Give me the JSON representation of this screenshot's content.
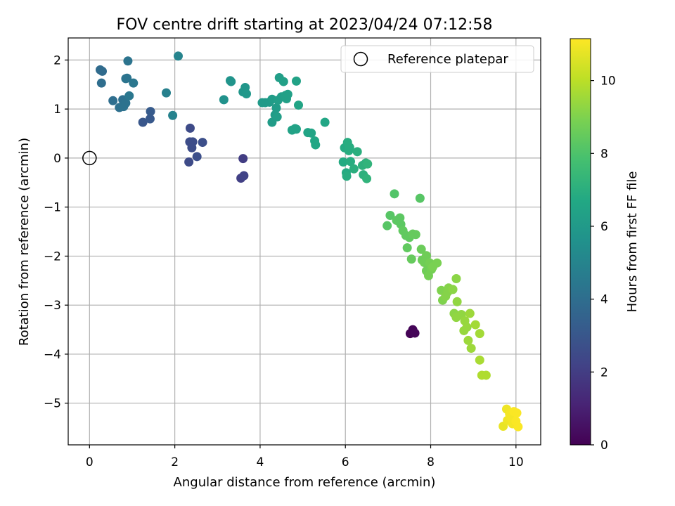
{
  "chart_data": {
    "type": "scatter",
    "title": "FOV centre drift starting at 2023/04/24 07:12:58",
    "xlabel": "Angular distance from reference (arcmin)",
    "ylabel": "Rotation from reference (arcmin)",
    "xlim": [
      -0.5,
      10.58
    ],
    "ylim": [
      -5.85,
      2.45
    ],
    "xticks": [
      0,
      2,
      4,
      6,
      8,
      10
    ],
    "yticks": [
      -5,
      -4,
      -3,
      -2,
      -1,
      0,
      1,
      2
    ],
    "xtick_labels": [
      "0",
      "2",
      "4",
      "6",
      "8",
      "10"
    ],
    "ytick_labels": [
      "−5",
      "−4",
      "−3",
      "−2",
      "−1",
      "0",
      "1",
      "2"
    ],
    "grid": true,
    "legend": {
      "placement": "top-right",
      "entries": [
        "Reference platepar"
      ]
    },
    "reference_point": {
      "x": 0,
      "y": 0
    },
    "colorbar": {
      "label": "Hours from first FF file",
      "range": [
        0,
        11.15
      ],
      "ticks": [
        0,
        2,
        4,
        6,
        8,
        10
      ],
      "tick_labels": [
        "0",
        "2",
        "4",
        "6",
        "8",
        "10"
      ],
      "colormap": "viridis"
    },
    "points": [
      {
        "x": 7.52,
        "y": -3.58,
        "h": 0.05
      },
      {
        "x": 7.58,
        "y": -3.5,
        "h": 0.1
      },
      {
        "x": 7.63,
        "y": -3.57,
        "h": 0.15
      },
      {
        "x": 3.6,
        "y": -0.01,
        "h": 2.0
      },
      {
        "x": 3.55,
        "y": -0.41,
        "h": 2.1
      },
      {
        "x": 3.62,
        "y": -0.36,
        "h": 2.2
      },
      {
        "x": 2.33,
        "y": -0.08,
        "h": 2.5
      },
      {
        "x": 2.36,
        "y": 0.61,
        "h": 2.5
      },
      {
        "x": 2.35,
        "y": 0.33,
        "h": 2.6
      },
      {
        "x": 2.42,
        "y": 0.33,
        "h": 2.6
      },
      {
        "x": 2.4,
        "y": 0.21,
        "h": 2.6
      },
      {
        "x": 2.52,
        "y": 0.03,
        "h": 2.7
      },
      {
        "x": 2.65,
        "y": 0.32,
        "h": 2.7
      },
      {
        "x": 1.25,
        "y": 0.73,
        "h": 3.0
      },
      {
        "x": 1.42,
        "y": 0.8,
        "h": 3.1
      },
      {
        "x": 1.43,
        "y": 0.95,
        "h": 3.2
      },
      {
        "x": 0.25,
        "y": 1.8,
        "h": 3.9
      },
      {
        "x": 0.3,
        "y": 1.77,
        "h": 3.9
      },
      {
        "x": 0.28,
        "y": 1.53,
        "h": 4.0
      },
      {
        "x": 0.55,
        "y": 1.17,
        "h": 4.0
      },
      {
        "x": 0.7,
        "y": 1.03,
        "h": 4.1
      },
      {
        "x": 0.78,
        "y": 1.19,
        "h": 4.1
      },
      {
        "x": 0.8,
        "y": 1.05,
        "h": 4.2
      },
      {
        "x": 0.85,
        "y": 1.12,
        "h": 4.2
      },
      {
        "x": 0.85,
        "y": 1.62,
        "h": 4.3
      },
      {
        "x": 0.88,
        "y": 1.63,
        "h": 4.3
      },
      {
        "x": 0.9,
        "y": 1.98,
        "h": 4.3
      },
      {
        "x": 0.93,
        "y": 1.27,
        "h": 4.4
      },
      {
        "x": 1.03,
        "y": 1.53,
        "h": 4.4
      },
      {
        "x": 1.8,
        "y": 1.33,
        "h": 4.8
      },
      {
        "x": 1.95,
        "y": 0.87,
        "h": 4.9
      },
      {
        "x": 2.08,
        "y": 2.08,
        "h": 5.0
      },
      {
        "x": 3.15,
        "y": 1.19,
        "h": 5.6
      },
      {
        "x": 3.3,
        "y": 1.58,
        "h": 5.7
      },
      {
        "x": 3.32,
        "y": 1.56,
        "h": 5.7
      },
      {
        "x": 3.6,
        "y": 1.35,
        "h": 5.8
      },
      {
        "x": 3.65,
        "y": 1.44,
        "h": 5.8
      },
      {
        "x": 3.68,
        "y": 1.31,
        "h": 5.9
      },
      {
        "x": 4.05,
        "y": 1.13,
        "h": 6.0
      },
      {
        "x": 4.12,
        "y": 1.13,
        "h": 6.0
      },
      {
        "x": 4.22,
        "y": 1.14,
        "h": 6.0
      },
      {
        "x": 4.28,
        "y": 1.2,
        "h": 6.1
      },
      {
        "x": 4.28,
        "y": 0.73,
        "h": 6.1
      },
      {
        "x": 4.35,
        "y": 0.88,
        "h": 6.1
      },
      {
        "x": 4.38,
        "y": 1.02,
        "h": 6.1
      },
      {
        "x": 4.4,
        "y": 0.84,
        "h": 6.2
      },
      {
        "x": 4.42,
        "y": 1.18,
        "h": 6.2
      },
      {
        "x": 4.45,
        "y": 1.64,
        "h": 6.2
      },
      {
        "x": 4.5,
        "y": 1.25,
        "h": 6.2
      },
      {
        "x": 4.55,
        "y": 1.56,
        "h": 6.3
      },
      {
        "x": 4.6,
        "y": 1.28,
        "h": 6.3
      },
      {
        "x": 4.62,
        "y": 1.21,
        "h": 6.3
      },
      {
        "x": 4.65,
        "y": 1.3,
        "h": 6.3
      },
      {
        "x": 4.75,
        "y": 0.57,
        "h": 6.4
      },
      {
        "x": 4.82,
        "y": 0.6,
        "h": 6.4
      },
      {
        "x": 4.85,
        "y": 0.59,
        "h": 6.4
      },
      {
        "x": 4.85,
        "y": 1.57,
        "h": 6.4
      },
      {
        "x": 4.9,
        "y": 1.08,
        "h": 6.5
      },
      {
        "x": 5.12,
        "y": 0.52,
        "h": 6.5
      },
      {
        "x": 5.2,
        "y": 0.51,
        "h": 6.5
      },
      {
        "x": 5.28,
        "y": 0.35,
        "h": 6.6
      },
      {
        "x": 5.3,
        "y": 0.27,
        "h": 6.6
      },
      {
        "x": 5.52,
        "y": 0.73,
        "h": 6.6
      },
      {
        "x": 5.95,
        "y": -0.08,
        "h": 6.8
      },
      {
        "x": 5.98,
        "y": 0.21,
        "h": 6.8
      },
      {
        "x": 6.02,
        "y": -0.3,
        "h": 6.8
      },
      {
        "x": 6.03,
        "y": -0.37,
        "h": 6.9
      },
      {
        "x": 6.05,
        "y": 0.32,
        "h": 6.9
      },
      {
        "x": 6.08,
        "y": 0.15,
        "h": 6.9
      },
      {
        "x": 6.1,
        "y": 0.22,
        "h": 6.9
      },
      {
        "x": 6.12,
        "y": -0.07,
        "h": 6.9
      },
      {
        "x": 6.2,
        "y": -0.22,
        "h": 7.0
      },
      {
        "x": 6.28,
        "y": 0.13,
        "h": 7.0
      },
      {
        "x": 6.4,
        "y": -0.15,
        "h": 7.1
      },
      {
        "x": 6.42,
        "y": -0.34,
        "h": 7.1
      },
      {
        "x": 6.48,
        "y": -0.1,
        "h": 7.1
      },
      {
        "x": 6.5,
        "y": -0.42,
        "h": 7.2
      },
      {
        "x": 6.52,
        "y": -0.12,
        "h": 7.2
      },
      {
        "x": 7.15,
        "y": -0.73,
        "h": 8.1
      },
      {
        "x": 7.75,
        "y": -0.82,
        "h": 8.2
      },
      {
        "x": 6.98,
        "y": -1.38,
        "h": 8.2
      },
      {
        "x": 7.05,
        "y": -1.17,
        "h": 8.2
      },
      {
        "x": 7.2,
        "y": -1.27,
        "h": 8.3
      },
      {
        "x": 7.28,
        "y": -1.22,
        "h": 8.3
      },
      {
        "x": 7.3,
        "y": -1.35,
        "h": 8.3
      },
      {
        "x": 7.35,
        "y": -1.48,
        "h": 8.4
      },
      {
        "x": 7.42,
        "y": -1.58,
        "h": 8.4
      },
      {
        "x": 7.45,
        "y": -1.83,
        "h": 8.4
      },
      {
        "x": 7.5,
        "y": -1.62,
        "h": 8.4
      },
      {
        "x": 7.55,
        "y": -2.06,
        "h": 8.5
      },
      {
        "x": 7.58,
        "y": -1.55,
        "h": 8.5
      },
      {
        "x": 7.65,
        "y": -1.56,
        "h": 8.5
      },
      {
        "x": 7.78,
        "y": -1.86,
        "h": 8.6
      },
      {
        "x": 7.8,
        "y": -2.08,
        "h": 8.6
      },
      {
        "x": 7.85,
        "y": -2.13,
        "h": 8.7
      },
      {
        "x": 7.9,
        "y": -1.99,
        "h": 8.7
      },
      {
        "x": 7.9,
        "y": -2.3,
        "h": 8.7
      },
      {
        "x": 7.95,
        "y": -2.4,
        "h": 8.8
      },
      {
        "x": 7.98,
        "y": -2.14,
        "h": 8.8
      },
      {
        "x": 8.02,
        "y": -2.27,
        "h": 8.8
      },
      {
        "x": 8.05,
        "y": -2.22,
        "h": 8.9
      },
      {
        "x": 8.15,
        "y": -2.14,
        "h": 8.9
      },
      {
        "x": 8.25,
        "y": -2.7,
        "h": 9.0
      },
      {
        "x": 8.28,
        "y": -2.9,
        "h": 9.0
      },
      {
        "x": 8.35,
        "y": -2.82,
        "h": 9.1
      },
      {
        "x": 8.4,
        "y": -2.73,
        "h": 9.1
      },
      {
        "x": 8.42,
        "y": -2.65,
        "h": 9.1
      },
      {
        "x": 8.52,
        "y": -2.68,
        "h": 9.2
      },
      {
        "x": 8.55,
        "y": -3.17,
        "h": 9.2
      },
      {
        "x": 8.6,
        "y": -2.46,
        "h": 9.2
      },
      {
        "x": 8.6,
        "y": -3.25,
        "h": 9.3
      },
      {
        "x": 8.62,
        "y": -2.93,
        "h": 9.3
      },
      {
        "x": 8.72,
        "y": -3.19,
        "h": 9.3
      },
      {
        "x": 8.78,
        "y": -3.52,
        "h": 9.4
      },
      {
        "x": 8.8,
        "y": -3.32,
        "h": 9.4
      },
      {
        "x": 8.85,
        "y": -3.45,
        "h": 9.4
      },
      {
        "x": 8.88,
        "y": -3.72,
        "h": 9.5
      },
      {
        "x": 8.92,
        "y": -3.17,
        "h": 9.5
      },
      {
        "x": 8.95,
        "y": -3.88,
        "h": 9.5
      },
      {
        "x": 9.05,
        "y": -3.4,
        "h": 9.6
      },
      {
        "x": 9.15,
        "y": -3.58,
        "h": 9.6
      },
      {
        "x": 9.15,
        "y": -4.12,
        "h": 9.7
      },
      {
        "x": 9.2,
        "y": -4.43,
        "h": 9.8
      },
      {
        "x": 9.3,
        "y": -4.43,
        "h": 9.8
      },
      {
        "x": 9.7,
        "y": -5.47,
        "h": 10.8
      },
      {
        "x": 9.78,
        "y": -5.12,
        "h": 10.9
      },
      {
        "x": 9.8,
        "y": -5.35,
        "h": 10.9
      },
      {
        "x": 9.85,
        "y": -5.22,
        "h": 11.0
      },
      {
        "x": 9.88,
        "y": -5.3,
        "h": 11.0
      },
      {
        "x": 9.92,
        "y": -5.42,
        "h": 11.0
      },
      {
        "x": 9.95,
        "y": -5.17,
        "h": 11.1
      },
      {
        "x": 10.0,
        "y": -5.37,
        "h": 11.1
      },
      {
        "x": 10.02,
        "y": -5.2,
        "h": 11.1
      },
      {
        "x": 10.05,
        "y": -5.48,
        "h": 11.1
      }
    ]
  }
}
